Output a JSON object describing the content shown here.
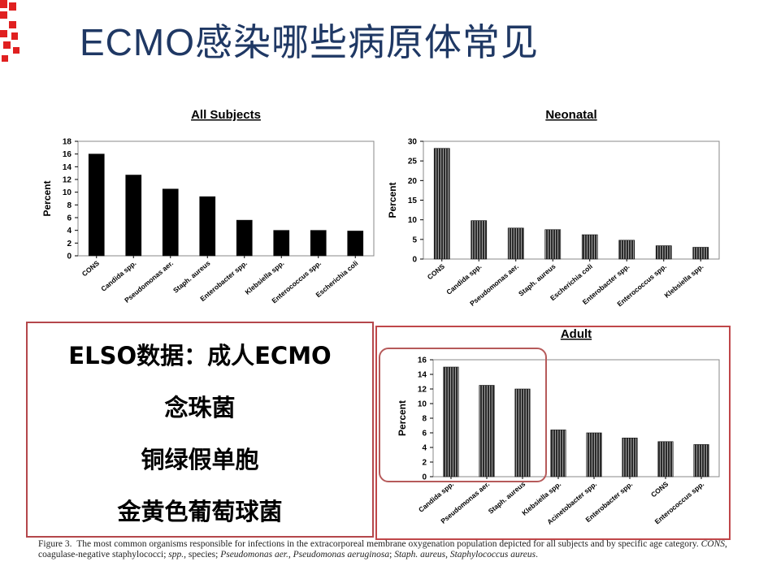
{
  "slide": {
    "title": "ECMO感染哪些病原体常见",
    "box_lines": [
      "ELSO数据：成人ECMO",
      "念珠菌",
      "铜绿假单胞",
      "金黄色葡萄球菌"
    ],
    "caption": {
      "fig_label": "Figure 3.",
      "text1": "The most common organisms responsible for infections in the extracorporeal membrane oxygenation population depicted for all subjects and by specific age category.",
      "abbr1": "CONS",
      "text2": ", coagulase-negative staphylococci;",
      "abbr2": "spp.",
      "text3": ", species;",
      "abbr3": "Pseudomonas aer.",
      "text4": ",",
      "abbr4": "Pseudomonas aeruginosa",
      "text5": ";",
      "abbr5": "Staph. aureus",
      "text6": ",",
      "abbr6": "Staphylococcus aureus",
      "text7": "."
    },
    "colors": {
      "title": "#1f3864",
      "frame": "#c0474a",
      "logo": "#e02020"
    }
  },
  "chart_data": [
    {
      "type": "bar",
      "title": "All Subjects",
      "ylabel": "Percent",
      "categories": [
        "CONS",
        "Candida spp.",
        "Pseudomonas aer.",
        "Staph. aureus",
        "Enterobacter spp.",
        "Klebsiella spp.",
        "Enterococcus spp.",
        "Escherichia coli"
      ],
      "values": [
        16,
        12.7,
        10.5,
        9.3,
        5.6,
        4.0,
        4.0,
        3.9
      ],
      "ylim": [
        0,
        18
      ],
      "yticks": [
        0,
        2,
        4,
        6,
        8,
        10,
        12,
        14,
        16,
        18
      ],
      "bar_style": "solid"
    },
    {
      "type": "bar",
      "title": "Neonatal",
      "ylabel": "Percent",
      "categories": [
        "CONS",
        "Candida spp.",
        "Pseudomonas aer.",
        "Staph. aureus",
        "Escherichia coli",
        "Enterobacter spp.",
        "Enterococcus spp.",
        "Klebsiella spp."
      ],
      "values": [
        28.2,
        9.8,
        7.9,
        7.5,
        6.2,
        4.8,
        3.4,
        3.0
      ],
      "ylim": [
        0,
        30
      ],
      "yticks": [
        0,
        5,
        10,
        15,
        20,
        25,
        30
      ],
      "bar_style": "striped"
    },
    {
      "type": "bar",
      "title": "Adult",
      "ylabel": "Percent",
      "categories": [
        "Candida spp.",
        "Pseudomonas aer.",
        "Staph. aureus",
        "Klebsiella spp.",
        "Acinetobacter spp.",
        "Enterobacter spp.",
        "CONS",
        "Enterococcus spp."
      ],
      "values": [
        15.0,
        12.5,
        12.0,
        6.4,
        6.0,
        5.3,
        4.8,
        4.4
      ],
      "ylim": [
        0,
        16
      ],
      "yticks": [
        0,
        2,
        4,
        6,
        8,
        10,
        12,
        14,
        16
      ],
      "bar_style": "striped"
    }
  ]
}
